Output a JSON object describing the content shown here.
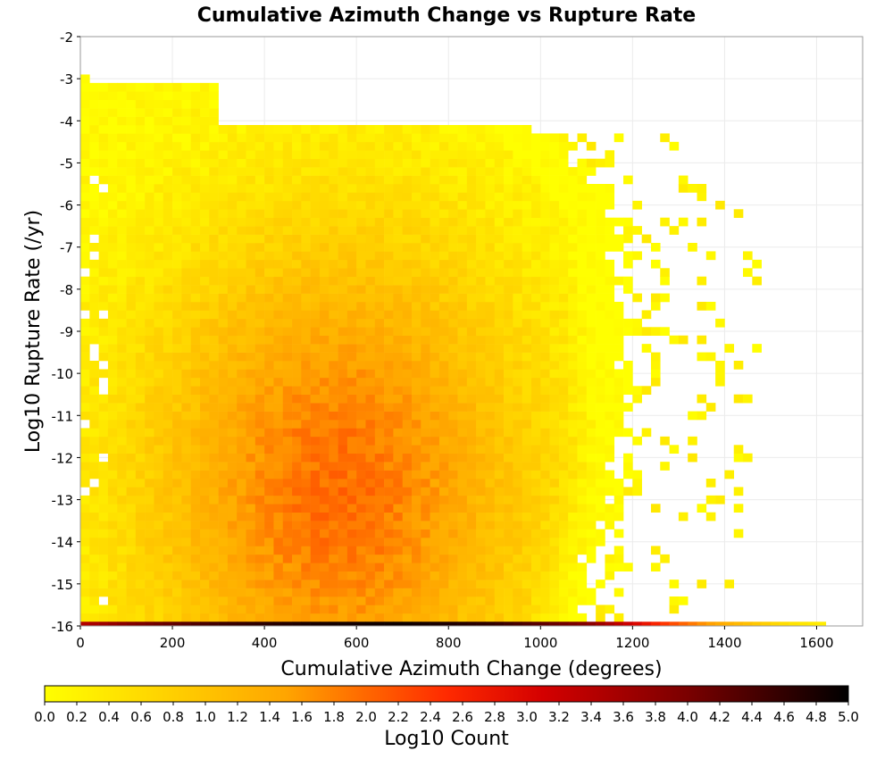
{
  "chart_data": {
    "type": "heatmap",
    "title": "Cumulative Azimuth Change vs Rupture Rate",
    "xlabel": "Cumulative Azimuth Change (degrees)",
    "ylabel": "Log10 Rupture Rate (/yr)",
    "xlim": [
      0,
      1700
    ],
    "ylim": [
      -16,
      -2
    ],
    "x_ticks": [
      "0",
      "200",
      "400",
      "600",
      "800",
      "1000",
      "1200",
      "1400",
      "1600"
    ],
    "x_tick_values": [
      0,
      200,
      400,
      600,
      800,
      1000,
      1200,
      1400,
      1600
    ],
    "y_ticks": [
      "-2",
      "-3",
      "-4",
      "-5",
      "-6",
      "-7",
      "-8",
      "-9",
      "-10",
      "-11",
      "-12",
      "-13",
      "-14",
      "-15",
      "-16"
    ],
    "y_tick_values": [
      -2,
      -3,
      -4,
      -5,
      -6,
      -7,
      -8,
      -9,
      -10,
      -11,
      -12,
      -13,
      -14,
      -15,
      -16
    ],
    "x_bin_width": 20,
    "y_bin_height": 0.2,
    "grid": true,
    "colorbar": {
      "label": "Log10 Count",
      "min": 0.0,
      "max": 5.0,
      "ticks": [
        "0.0",
        "0.2",
        "0.4",
        "0.6",
        "0.8",
        "1.0",
        "1.2",
        "1.4",
        "1.6",
        "1.8",
        "2.0",
        "2.2",
        "2.4",
        "2.6",
        "2.8",
        "3.0",
        "3.2",
        "3.4",
        "3.6",
        "3.8",
        "4.0",
        "4.2",
        "4.4",
        "4.6",
        "4.8",
        "5.0"
      ],
      "tick_values": [
        0,
        0.2,
        0.4,
        0.6,
        0.8,
        1.0,
        1.2,
        1.4,
        1.6,
        1.8,
        2.0,
        2.2,
        2.4,
        2.6,
        2.8,
        3.0,
        3.2,
        3.4,
        3.6,
        3.8,
        4.0,
        4.2,
        4.4,
        4.6,
        4.8,
        5.0
      ],
      "colors": [
        "#ffff00",
        "#ff9900",
        "#ff0000",
        "#000000"
      ],
      "placement": "bottom"
    },
    "density_model": {
      "description_free": true,
      "x_max_edge": [
        [
          -4.2,
          1020
        ],
        [
          -5.2,
          1120
        ],
        [
          -6,
          1180
        ],
        [
          -8,
          1200
        ],
        [
          -12,
          1200
        ],
        [
          -14,
          1160
        ],
        [
          -15.4,
          1120
        ]
      ],
      "peak_x": 560,
      "peak_y": -12.8,
      "peak_value": 1.95
    },
    "bottom_row": {
      "y_range": [
        -16,
        -15.9
      ],
      "x_range": [
        0,
        1620
      ],
      "values_by_x": [
        [
          0,
          3.4
        ],
        [
          100,
          3.9
        ],
        [
          300,
          4.5
        ],
        [
          500,
          4.8
        ],
        [
          700,
          4.9
        ],
        [
          900,
          4.6
        ],
        [
          1100,
          3.9
        ],
        [
          1200,
          3.1
        ],
        [
          1280,
          2.3
        ],
        [
          1360,
          1.6
        ],
        [
          1460,
          1.0
        ],
        [
          1540,
          0.5
        ],
        [
          1620,
          0.3
        ]
      ]
    }
  }
}
